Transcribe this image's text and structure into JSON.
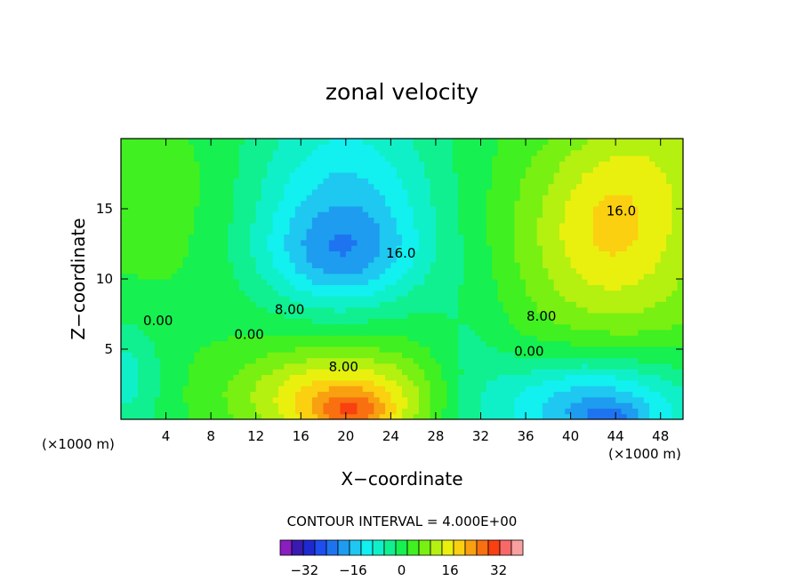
{
  "chart_data": {
    "type": "heatmap",
    "title": "zonal velocity",
    "xlabel": "X−coordinate",
    "ylabel": "Z−coordinate",
    "x_unit": "(×1000 m)",
    "y_unit": "(×1000 m)",
    "xlim": [
      0,
      50
    ],
    "ylim": [
      0,
      20
    ],
    "x_ticks": [
      "4",
      "8",
      "12",
      "16",
      "20",
      "24",
      "28",
      "32",
      "36",
      "40",
      "44",
      "48"
    ],
    "y_ticks": [
      "5",
      "10",
      "15"
    ],
    "contour_interval_text": "CONTOUR INTERVAL = 4.000E+00",
    "colorbar": {
      "tick_labels": [
        "−32",
        "−16",
        "0",
        "16",
        "32"
      ],
      "tick_values": [
        -32,
        -16,
        0,
        16,
        32
      ],
      "levels": [
        -40,
        -36,
        -32,
        -28,
        -24,
        -20,
        -16,
        -12,
        -8,
        -4,
        0,
        4,
        8,
        12,
        16,
        20,
        24,
        28,
        32,
        36,
        40
      ],
      "colors": [
        "#8a1ec0",
        "#3a1ab0",
        "#1e2ad0",
        "#1e4ef0",
        "#1e74f0",
        "#1e9cf0",
        "#1ec8f0",
        "#12f0f0",
        "#10f0c8",
        "#10f090",
        "#16f050",
        "#40f020",
        "#78f012",
        "#b4f010",
        "#eaf00e",
        "#fad010",
        "#f8a010",
        "#f87010",
        "#f84010",
        "#f86868",
        "#f8a0a0"
      ]
    },
    "contour_labels": [
      {
        "text": "0.00",
        "x": 3.3,
        "y": 7.0
      },
      {
        "text": "0.00",
        "x": 11.4,
        "y": 6.0
      },
      {
        "text": "0.00",
        "x": 36.3,
        "y": 4.8
      },
      {
        "text": "8.00",
        "x": 15.0,
        "y": 7.8
      },
      {
        "text": "8.00",
        "x": 19.8,
        "y": 3.7
      },
      {
        "text": "8.00",
        "x": 37.4,
        "y": 7.3
      },
      {
        "text": "16.0",
        "x": 24.9,
        "y": 11.8
      },
      {
        "text": "16.0",
        "x": 44.5,
        "y": 14.8
      }
    ],
    "blobs": [
      {
        "x": 25,
        "y": 10,
        "rx": 40,
        "ry": 16,
        "value": 4
      },
      {
        "x": 45,
        "y": 13.5,
        "rx": 10,
        "ry": 9,
        "value": 12
      },
      {
        "x": 43,
        "y": 13.5,
        "rx": 6,
        "ry": 5.5,
        "value": 6
      },
      {
        "x": 49,
        "y": 19,
        "rx": 8,
        "ry": 4,
        "value": 4
      },
      {
        "x": 20,
        "y": 15.5,
        "rx": 8.5,
        "ry": 7,
        "value": -16
      },
      {
        "x": 19.5,
        "y": 11.5,
        "rx": 7,
        "ry": 3.5,
        "value": -12
      },
      {
        "x": 19.5,
        "y": 1.5,
        "rx": 9,
        "ry": 3.5,
        "value": 20
      },
      {
        "x": 20.5,
        "y": 0.5,
        "rx": 3.5,
        "ry": 1.5,
        "value": 12
      },
      {
        "x": 42,
        "y": 1.0,
        "rx": 9,
        "ry": 3.5,
        "value": -20
      },
      {
        "x": 43.5,
        "y": 0.2,
        "rx": 3,
        "ry": 1,
        "value": -8
      },
      {
        "x": 2,
        "y": 17,
        "rx": 8,
        "ry": 7,
        "value": 4
      },
      {
        "x": 0.5,
        "y": 3,
        "rx": 3,
        "ry": 4,
        "value": -8
      },
      {
        "x": 31,
        "y": 3,
        "rx": 4,
        "ry": 8,
        "value": -5
      }
    ]
  }
}
